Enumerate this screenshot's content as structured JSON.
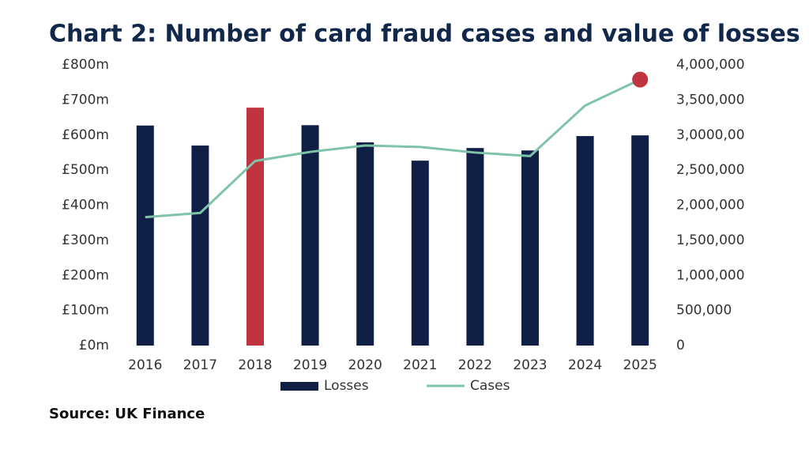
{
  "chart_data": {
    "type": "bar",
    "title": "Chart 2: Number of card fraud cases and value of losses",
    "source": "Source: UK Finance",
    "categories": [
      "2016",
      "2017",
      "2018",
      "2019",
      "2020",
      "2021",
      "2022",
      "2023",
      "2024",
      "2025"
    ],
    "series": [
      {
        "name": "Losses",
        "type": "bar",
        "color": "#0f1f45",
        "colors": [
          "#0f1f45",
          "#0f1f45",
          "#c0343f",
          "#0f1f45",
          "#0f1f45",
          "#0f1f45",
          "#0f1f45",
          "#0f1f45",
          "#0f1f45",
          "#0f1f45"
        ],
        "values": [
          627,
          570,
          678,
          628,
          579,
          527,
          563,
          556,
          597,
          599
        ]
      },
      {
        "name": "Cases",
        "type": "line",
        "axis": "y2",
        "color": "#7fc4a9",
        "markers": [
          null,
          null,
          null,
          null,
          null,
          null,
          null,
          null,
          null,
          "#c0343f"
        ],
        "values": [
          1830000,
          1890000,
          2630000,
          2760000,
          2850000,
          2830000,
          2750000,
          2700000,
          3420000,
          3790000
        ]
      }
    ],
    "ylim": [
      0,
      800
    ],
    "yticks": [
      {
        "value": 0,
        "label": "£0m"
      },
      {
        "value": 100,
        "label": "£100m"
      },
      {
        "value": 200,
        "label": "£200m"
      },
      {
        "value": 300,
        "label": "£300m"
      },
      {
        "value": 400,
        "label": "£400m"
      },
      {
        "value": 500,
        "label": "£500m"
      },
      {
        "value": 600,
        "label": "£600m"
      },
      {
        "value": 700,
        "label": "£700m"
      },
      {
        "value": 800,
        "label": "£800m"
      }
    ],
    "y2lim": [
      0,
      4000000
    ],
    "y2ticks": [
      0,
      {
        "value": 500000,
        "label": "500,000"
      },
      {
        "value": 1000000,
        "label": "1,000,000"
      },
      {
        "value": 1500000,
        "label": "1,500,000"
      },
      {
        "value": 2000000,
        "label": "2,000,000"
      },
      {
        "value": 2500000,
        "label": "2,500,000"
      },
      {
        "value": 3000000,
        "label": "3,0000,00"
      },
      {
        "value": 3500000,
        "label": "3,500,000"
      },
      {
        "value": 4000000,
        "label": "4,000,000"
      }
    ],
    "grid": false,
    "legend": "bottom"
  }
}
